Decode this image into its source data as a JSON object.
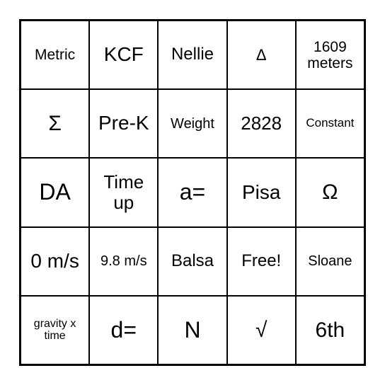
{
  "grid": {
    "type": "table",
    "rows": 5,
    "cols": 5,
    "border_color": "#000000",
    "background_color": "#ffffff",
    "text_color": "#000000",
    "cells": [
      [
        {
          "text": "Metric",
          "fontsize": 21
        },
        {
          "text": "KCF",
          "fontsize": 28
        },
        {
          "text": "Nellie",
          "fontsize": 24
        },
        {
          "text": "Δ",
          "fontsize": 22
        },
        {
          "text": "1609 meters",
          "fontsize": 21
        }
      ],
      [
        {
          "text": "Σ",
          "fontsize": 30
        },
        {
          "text": "Pre-K",
          "fontsize": 28
        },
        {
          "text": "Weight",
          "fontsize": 20
        },
        {
          "text": "2828",
          "fontsize": 26
        },
        {
          "text": "Constant",
          "fontsize": 17
        }
      ],
      [
        {
          "text": "DA",
          "fontsize": 32
        },
        {
          "text": "Time up",
          "fontsize": 26
        },
        {
          "text": "a=",
          "fontsize": 32
        },
        {
          "text": "Pisa",
          "fontsize": 28
        },
        {
          "text": "Ω",
          "fontsize": 30
        }
      ],
      [
        {
          "text": "0 m/s",
          "fontsize": 28
        },
        {
          "text": "9.8 m/s",
          "fontsize": 20
        },
        {
          "text": "Balsa",
          "fontsize": 24
        },
        {
          "text": "Free!",
          "fontsize": 24
        },
        {
          "text": "Sloane",
          "fontsize": 20
        }
      ],
      [
        {
          "text": "gravity x time",
          "fontsize": 16
        },
        {
          "text": "d=",
          "fontsize": 32
        },
        {
          "text": "N",
          "fontsize": 32
        },
        {
          "text": "√",
          "fontsize": 30
        },
        {
          "text": "6th",
          "fontsize": 30
        }
      ]
    ]
  }
}
